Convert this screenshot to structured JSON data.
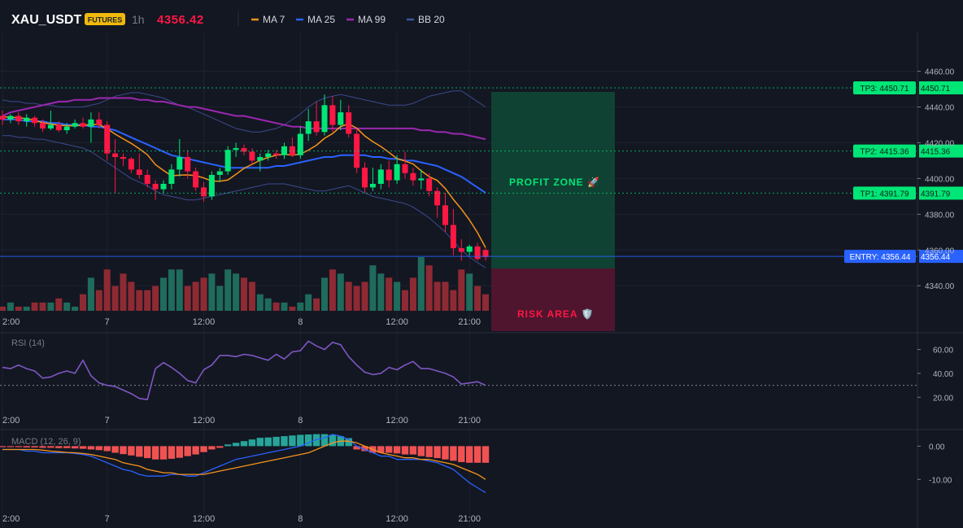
{
  "header": {
    "symbol": "XAU_USDT",
    "badge": "FUTURES",
    "interval": "1h",
    "price": "4356.42",
    "indicators": [
      {
        "label": "MA 7",
        "color": "#f7931a"
      },
      {
        "label": "MA 25",
        "color": "#2962ff"
      },
      {
        "label": "MA 99",
        "color": "#9c27b0"
      },
      {
        "label": "BB 20",
        "color": "#3b5998"
      }
    ]
  },
  "colors": {
    "background": "#131722",
    "up": "#26a69a",
    "up_candle": "#00e676",
    "down": "#ff1744",
    "vol_up": "#1f6b5c",
    "vol_down": "#8e2a33",
    "tp": "#00e676",
    "entry": "#2962ff",
    "profit_zone": "#0f4a36",
    "risk_zone": "#5a1530"
  },
  "zones": {
    "profit_label": "PROFIT ZONE 🚀",
    "risk_label": "RISK AREA 🛡️"
  },
  "levels": [
    {
      "name": "tp3",
      "label": "TP3: 4450.71",
      "axis": "4450.71",
      "price": 4450.71
    },
    {
      "name": "tp2",
      "label": "TP2: 4415.36",
      "axis": "4415.36",
      "price": 4415.36
    },
    {
      "name": "tp1",
      "label": "TP1: 4391.79",
      "axis": "4391.79",
      "price": 4391.79
    },
    {
      "name": "entry",
      "label": "ENTRY: 4356.44",
      "axis": "4356.44",
      "price": 4356.44
    }
  ],
  "time_labels": [
    {
      "label": "2:00",
      "index": 0
    },
    {
      "label": "7",
      "index": 13
    },
    {
      "label": "12:00",
      "index": 25
    },
    {
      "label": "8",
      "index": 37
    },
    {
      "label": "12:00",
      "index": 49
    },
    {
      "label": "21:00",
      "index": 58
    }
  ],
  "main_pane": {
    "y_ticks": [
      "4460.00",
      "4440.00",
      "4420.00",
      "4400.00",
      "4380.00",
      "4360.00",
      "4340.00"
    ],
    "y_tick_values": [
      4460,
      4440,
      4420,
      4400,
      4380,
      4360,
      4340
    ],
    "ylim": [
      4326,
      4478
    ]
  },
  "rsi_pane": {
    "title": "RSI (14)",
    "y_ticks": [
      "60.00",
      "40.00",
      "20.00"
    ],
    "y_tick_values": [
      60,
      40,
      20
    ],
    "ylim": [
      12,
      72
    ],
    "threshold": 30,
    "color": "#7e57c2"
  },
  "macd_pane": {
    "title": "MACD (12, 26, 9)",
    "y_ticks": [
      "0.00",
      "-10.00"
    ],
    "y_tick_values": [
      0,
      -10
    ],
    "ylim": [
      -18,
      4
    ],
    "macd_color": "#2962ff",
    "signal_color": "#f7931a",
    "hist_up": "#26a69a",
    "hist_down": "#f05252"
  },
  "chart_data": {
    "type": "candlestick",
    "candles": [
      {
        "o": 4435,
        "h": 4438,
        "l": 4430,
        "c": 4433
      },
      {
        "o": 4433,
        "h": 4436,
        "l": 4431,
        "c": 4435
      },
      {
        "o": 4435,
        "h": 4437,
        "l": 4430,
        "c": 4432
      },
      {
        "o": 4432,
        "h": 4436,
        "l": 4429,
        "c": 4434
      },
      {
        "o": 4434,
        "h": 4435,
        "l": 4429,
        "c": 4431
      },
      {
        "o": 4431,
        "h": 4433,
        "l": 4426,
        "c": 4428
      },
      {
        "o": 4428,
        "h": 4438,
        "l": 4427,
        "c": 4430
      },
      {
        "o": 4430,
        "h": 4432,
        "l": 4426,
        "c": 4427
      },
      {
        "o": 4427,
        "h": 4431,
        "l": 4425,
        "c": 4429
      },
      {
        "o": 4429,
        "h": 4433,
        "l": 4428,
        "c": 4431
      },
      {
        "o": 4431,
        "h": 4434,
        "l": 4428,
        "c": 4429
      },
      {
        "o": 4429,
        "h": 4437,
        "l": 4420,
        "c": 4433
      },
      {
        "o": 4433,
        "h": 4437,
        "l": 4428,
        "c": 4430
      },
      {
        "o": 4430,
        "h": 4432,
        "l": 4410,
        "c": 4414
      },
      {
        "o": 4414,
        "h": 4422,
        "l": 4392,
        "c": 4412
      },
      {
        "o": 4412,
        "h": 4414,
        "l": 4407,
        "c": 4411
      },
      {
        "o": 4411,
        "h": 4412,
        "l": 4403,
        "c": 4405
      },
      {
        "o": 4405,
        "h": 4414,
        "l": 4400,
        "c": 4402
      },
      {
        "o": 4402,
        "h": 4405,
        "l": 4395,
        "c": 4397
      },
      {
        "o": 4397,
        "h": 4399,
        "l": 4388,
        "c": 4394
      },
      {
        "o": 4394,
        "h": 4399,
        "l": 4392,
        "c": 4397
      },
      {
        "o": 4397,
        "h": 4408,
        "l": 4394,
        "c": 4405
      },
      {
        "o": 4405,
        "h": 4422,
        "l": 4401,
        "c": 4412
      },
      {
        "o": 4412,
        "h": 4416,
        "l": 4400,
        "c": 4404
      },
      {
        "o": 4404,
        "h": 4406,
        "l": 4393,
        "c": 4395
      },
      {
        "o": 4395,
        "h": 4398,
        "l": 4387,
        "c": 4390
      },
      {
        "o": 4390,
        "h": 4404,
        "l": 4388,
        "c": 4402
      },
      {
        "o": 4402,
        "h": 4406,
        "l": 4398,
        "c": 4404
      },
      {
        "o": 4404,
        "h": 4418,
        "l": 4402,
        "c": 4416
      },
      {
        "o": 4416,
        "h": 4420,
        "l": 4412,
        "c": 4417
      },
      {
        "o": 4417,
        "h": 4419,
        "l": 4413,
        "c": 4415
      },
      {
        "o": 4415,
        "h": 4417,
        "l": 4408,
        "c": 4410
      },
      {
        "o": 4410,
        "h": 4414,
        "l": 4404,
        "c": 4412
      },
      {
        "o": 4412,
        "h": 4416,
        "l": 4410,
        "c": 4414
      },
      {
        "o": 4414,
        "h": 4416,
        "l": 4411,
        "c": 4413
      },
      {
        "o": 4413,
        "h": 4420,
        "l": 4411,
        "c": 4418
      },
      {
        "o": 4418,
        "h": 4423,
        "l": 4412,
        "c": 4413
      },
      {
        "o": 4413,
        "h": 4429,
        "l": 4411,
        "c": 4425
      },
      {
        "o": 4425,
        "h": 4439,
        "l": 4421,
        "c": 4432
      },
      {
        "o": 4432,
        "h": 4443,
        "l": 4424,
        "c": 4426
      },
      {
        "o": 4426,
        "h": 4447,
        "l": 4424,
        "c": 4441
      },
      {
        "o": 4441,
        "h": 4446,
        "l": 4426,
        "c": 4430
      },
      {
        "o": 4430,
        "h": 4444,
        "l": 4427,
        "c": 4437
      },
      {
        "o": 4437,
        "h": 4441,
        "l": 4423,
        "c": 4425
      },
      {
        "o": 4425,
        "h": 4428,
        "l": 4403,
        "c": 4406
      },
      {
        "o": 4406,
        "h": 4409,
        "l": 4392,
        "c": 4395
      },
      {
        "o": 4395,
        "h": 4406,
        "l": 4393,
        "c": 4397
      },
      {
        "o": 4397,
        "h": 4408,
        "l": 4394,
        "c": 4405
      },
      {
        "o": 4405,
        "h": 4410,
        "l": 4395,
        "c": 4399
      },
      {
        "o": 4399,
        "h": 4413,
        "l": 4397,
        "c": 4408
      },
      {
        "o": 4408,
        "h": 4415,
        "l": 4400,
        "c": 4403
      },
      {
        "o": 4403,
        "h": 4406,
        "l": 4396,
        "c": 4399
      },
      {
        "o": 4399,
        "h": 4405,
        "l": 4394,
        "c": 4400
      },
      {
        "o": 4400,
        "h": 4403,
        "l": 4390,
        "c": 4393
      },
      {
        "o": 4393,
        "h": 4395,
        "l": 4378,
        "c": 4385
      },
      {
        "o": 4385,
        "h": 4392,
        "l": 4370,
        "c": 4374
      },
      {
        "o": 4374,
        "h": 4383,
        "l": 4357,
        "c": 4361
      },
      {
        "o": 4361,
        "h": 4366,
        "l": 4354,
        "c": 4359
      },
      {
        "o": 4359,
        "h": 4363,
        "l": 4357,
        "c": 4362
      },
      {
        "o": 4362,
        "h": 4364,
        "l": 4354,
        "c": 4355
      },
      {
        "o": 4360,
        "h": 4361,
        "l": 4354,
        "c": 4356
      }
    ],
    "volume": [
      1,
      2,
      1,
      1,
      2,
      2,
      2,
      3,
      2,
      1,
      4,
      8,
      5,
      10,
      6,
      9,
      7,
      5,
      5,
      6,
      8,
      10,
      10,
      6,
      7,
      8,
      9,
      6,
      10,
      9,
      8,
      7,
      4,
      3,
      2,
      2,
      1,
      2,
      4,
      3,
      8,
      10,
      9,
      7,
      6,
      7,
      11,
      9,
      8,
      7,
      5,
      8,
      13,
      11,
      7,
      7,
      5,
      10,
      9,
      6,
      4
    ],
    "ma7": [
      4434.6,
      4434.3,
      4433.9,
      4433.5,
      4432.5,
      4431.2,
      4430.5,
      4429.9,
      4429.5,
      4429.6,
      4429.7,
      4430.2,
      4430.2,
      4427.9,
      4424.8,
      4422.2,
      4419.6,
      4416.6,
      4413.3,
      4407.8,
      4404.5,
      4401.5,
      4401.9,
      4402.0,
      4401.6,
      4400.3,
      4398.6,
      4398.5,
      4399.2,
      4402.3,
      4405.7,
      4407.9,
      4410.2,
      4411.8,
      4413.0,
      4413.6,
      4413.0,
      4413.6,
      4415.9,
      4418.6,
      4422.5,
      4425.1,
      4429.1,
      4430.6,
      4428.1,
      4423.8,
      4420.6,
      4417.9,
      4414.6,
      4411.1,
      4409.8,
      4408.1,
      4404.3,
      4401.0,
      4398.9,
      4394.4,
      4388.3,
      4382.9,
      4376.8,
      4369.7,
      4361.3
    ],
    "ma25": [
      4433,
      4433,
      4433,
      4432,
      4432,
      4432,
      4431,
      4431,
      4430,
      4430,
      4430,
      4429,
      4429,
      4428,
      4427,
      4425,
      4423,
      4421,
      4419,
      4417,
      4415,
      4413,
      4412,
      4411,
      4410,
      4409,
      4408,
      4407,
      4406,
      4406,
      4406,
      4406,
      4406,
      4406,
      4407,
      4407,
      4408,
      4409,
      4410,
      4411,
      4412,
      4412,
      4413,
      4413,
      4413,
      4413,
      4412,
      4412,
      4411,
      4411,
      4410,
      4410,
      4409,
      4408,
      4407,
      4405,
      4403,
      4401,
      4398,
      4395,
      4392
    ],
    "ma99": [
      4435,
      4437,
      4438,
      4439,
      4440,
      4441,
      4442,
      4443,
      4443,
      4444,
      4444,
      4444,
      4445,
      4445,
      4445,
      4445,
      4445,
      4444,
      4444,
      4443,
      4443,
      4442,
      4441,
      4440,
      4440,
      4439,
      4438,
      4437,
      4436,
      4435,
      4435,
      4434,
      4433,
      4432,
      4431,
      4430,
      4429,
      4429,
      4428,
      4428,
      4428,
      4428,
      4428,
      4428,
      4428,
      4428,
      4428,
      4428,
      4428,
      4428,
      4428,
      4428,
      4427,
      4427,
      4426,
      4426,
      4425,
      4425,
      4424,
      4423,
      4422
    ],
    "bb_upper": [
      4444,
      4443,
      4443,
      4442,
      4442,
      4441,
      4441,
      4440,
      4440,
      4440,
      4440,
      4441,
      4442,
      4444,
      4446,
      4447,
      4448,
      4448,
      4447,
      4446,
      4445,
      4443,
      4441,
      4440,
      4438,
      4436,
      4434,
      4432,
      4430,
      4428,
      4427,
      4426,
      4426,
      4427,
      4428,
      4430,
      4433,
      4436,
      4440,
      4443,
      4445,
      4446,
      4447,
      4446,
      4445,
      4444,
      4443,
      4442,
      4441,
      4441,
      4441,
      4442,
      4444,
      4446,
      4447,
      4448,
      4449,
      4449,
      4446,
      4443,
      4440
    ],
    "bb_lower": [
      4424,
      4424,
      4423,
      4423,
      4422,
      4422,
      4421,
      4420,
      4419,
      4418,
      4417,
      4415,
      4412,
      4409,
      4406,
      4403,
      4400,
      4398,
      4396,
      4393,
      4391,
      4390,
      4389,
      4388,
      4388,
      4389,
      4390,
      4391,
      4392,
      4393,
      4394,
      4395,
      4396,
      4397,
      4397,
      4397,
      4396,
      4395,
      4394,
      4393,
      4393,
      4394,
      4395,
      4396,
      4394,
      4392,
      4390,
      4389,
      4388,
      4387,
      4386,
      4384,
      4381,
      4378,
      4374,
      4370,
      4365,
      4360,
      4356,
      4353,
      4350
    ],
    "rsi": [
      45,
      44,
      47,
      44,
      42,
      36,
      37,
      40,
      42,
      40,
      51,
      38,
      32,
      30,
      29,
      26,
      23,
      19,
      18,
      44,
      49,
      45,
      40,
      34,
      32,
      43,
      47,
      55,
      55,
      54,
      56,
      55,
      53,
      51,
      56,
      52,
      58,
      59,
      67,
      63,
      60,
      66,
      64,
      54,
      47,
      41,
      39,
      40,
      45,
      43,
      47,
      50,
      44,
      44,
      42,
      40,
      37,
      31,
      32,
      33,
      30
    ],
    "macd": [
      -1,
      -1,
      -1,
      -1.5,
      -1.5,
      -2,
      -2,
      -2,
      -2,
      -2.2,
      -2.5,
      -3,
      -4,
      -5,
      -6,
      -7,
      -7.5,
      -8.5,
      -9,
      -9,
      -9,
      -8.5,
      -8.5,
      -9,
      -9,
      -8,
      -7,
      -6,
      -5,
      -4,
      -3.5,
      -3,
      -2.5,
      -2,
      -1.5,
      -1,
      -0.5,
      0,
      1,
      2,
      2.5,
      3.5,
      3,
      2,
      0,
      -1,
      -2,
      -3,
      -3,
      -4,
      -4,
      -4,
      -4,
      -4.5,
      -5,
      -6,
      -7,
      -9,
      -11,
      -12.5,
      -14
    ],
    "signal": [
      -1,
      -1,
      -1,
      -1,
      -1,
      -1.2,
      -1.5,
      -1.7,
      -1.9,
      -2,
      -2.2,
      -2.5,
      -3,
      -3.5,
      -4,
      -5,
      -5.5,
      -6,
      -7,
      -7.5,
      -8,
      -8,
      -8.5,
      -8.5,
      -8.5,
      -8.5,
      -8,
      -7.5,
      -7,
      -6.5,
      -6,
      -5.5,
      -5,
      -4.5,
      -4,
      -3.5,
      -3,
      -2.5,
      -2,
      -1,
      0,
      1,
      1.5,
      1.5,
      1,
      0,
      -1,
      -2,
      -2.5,
      -3,
      -3.5,
      -3.5,
      -4,
      -4,
      -4.5,
      -5,
      -5.5,
      -6.5,
      -7.5,
      -8.5,
      -10
    ],
    "histogram": [
      -0.3,
      -0.3,
      -0.3,
      -0.4,
      -0.4,
      -0.5,
      -0.5,
      -0.6,
      -0.6,
      -0.7,
      -0.8,
      -1,
      -1.2,
      -1.5,
      -2,
      -2.4,
      -2.8,
      -3.2,
      -3.6,
      -4,
      -4,
      -3.8,
      -3.5,
      -3,
      -2.5,
      -1.8,
      -1,
      -0.5,
      0.5,
      1,
      1.5,
      2,
      2.5,
      2.6,
      2.8,
      3,
      3.2,
      3.4,
      3.5,
      3.6,
      3.6,
      3.4,
      3,
      2.4,
      -1,
      -1.5,
      -2,
      -2,
      -2,
      -2.2,
      -2.5,
      -2.5,
      -3,
      -3.3,
      -3.6,
      -4,
      -4.4,
      -4.8,
      -5,
      -5,
      -5
    ]
  }
}
